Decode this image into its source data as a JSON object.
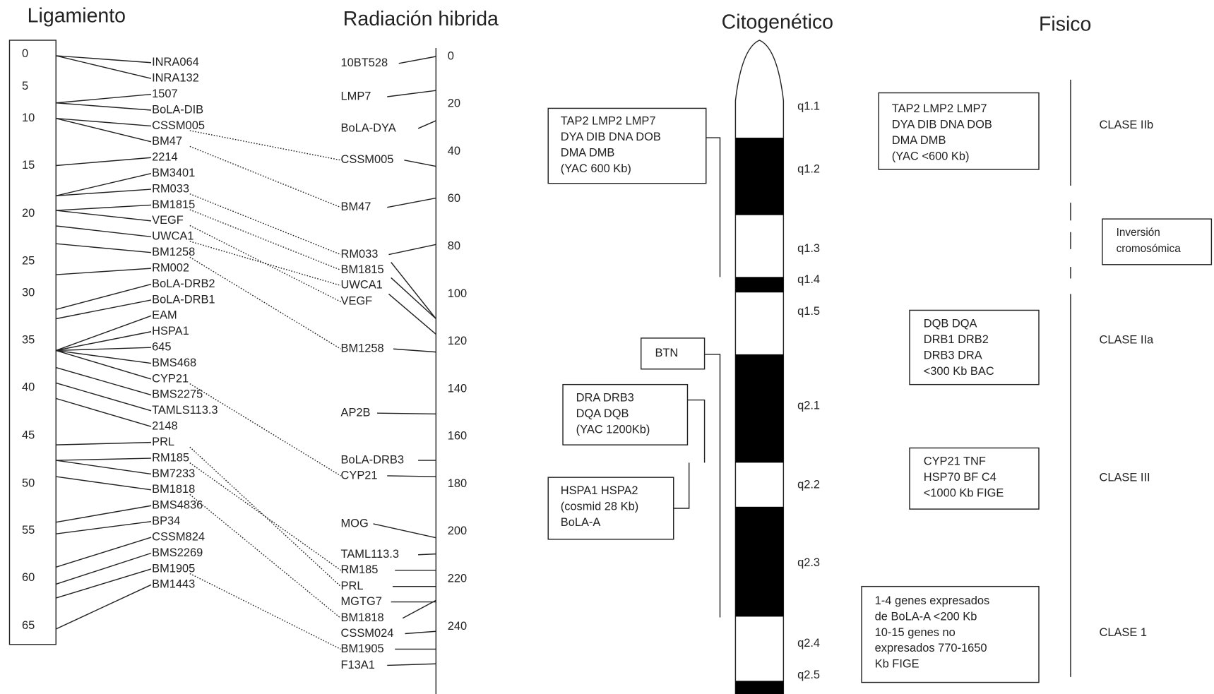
{
  "linkage": {
    "title": "Ligamiento",
    "scale": [
      0,
      5,
      10,
      15,
      20,
      25,
      30,
      35,
      40,
      45,
      50,
      55,
      60,
      65
    ],
    "markers": [
      "INRA064",
      "INRA132",
      "1507",
      "BoLA-DIB",
      "CSSM005",
      "BM47",
      "2214",
      "BM3401",
      "RM033",
      "BM1815",
      "VEGF",
      "UWCA1",
      "BM1258",
      "RM002",
      "BoLA-DRB2",
      "BoLA-DRB1",
      "EAM",
      "HSPA1",
      "645",
      "BMS468",
      "CYP21",
      "BMS2275",
      "TAMLS113.3",
      "2148",
      "PRL",
      "RM185",
      "BM7233",
      "BM1818",
      "BMS4836",
      "BP34",
      "CSSM824",
      "BMS2269",
      "BM1905",
      "BM1443"
    ]
  },
  "radiation_hybrid": {
    "title": "Radiación hibrida",
    "scale": [
      0,
      20,
      40,
      60,
      80,
      100,
      120,
      140,
      160,
      180,
      200,
      220,
      240
    ],
    "markers": [
      "10BT528",
      "LMP7",
      "BoLA-DYA",
      "CSSM005",
      "BM47",
      "RM033",
      "BM1815",
      "UWCA1",
      "VEGF",
      "BM1258",
      "AP2B",
      "BoLA-DRB3",
      "CYP21",
      "MOG",
      "TAML113.3",
      "RM185",
      "PRL",
      "MGTG7",
      "BM1818",
      "CSSM024",
      "BM1905",
      "F13A1"
    ]
  },
  "cytogenetic": {
    "title": "Citogenético",
    "bands": [
      "q1.1",
      "q1.2",
      "q1.3",
      "q1.4",
      "q1.5",
      "q2.1",
      "q2.2",
      "q2.3",
      "q2.4",
      "q2.5"
    ],
    "boxes": [
      [
        "TAP2 LMP2 LMP7",
        "DYA DIB DNA DOB",
        "DMA DMB",
        "(YAC 600 Kb)"
      ],
      [
        "BTN"
      ],
      [
        "DRA DRB3",
        "DQA DQB",
        "(YAC 1200Kb)"
      ],
      [
        "HSPA1 HSPA2",
        "(cosmid 28 Kb)",
        "BoLA-A"
      ]
    ]
  },
  "physical": {
    "title": "Fisico",
    "boxes": [
      [
        "TAP2 LMP2 LMP7",
        "DYA DIB DNA DOB",
        "DMA DMB",
        "(YAC <600 Kb)"
      ],
      [
        "DQB DQA",
        "DRB1 DRB2",
        "DRB3 DRA",
        "<300 Kb BAC"
      ],
      [
        "CYP21 TNF",
        "HSP70 BF C4",
        "<1000 Kb FIGE"
      ],
      [
        "1-4 genes expresados",
        "de BoLA-A <200 Kb",
        "10-15 genes no",
        "expresados 770-1650",
        "Kb FIGE"
      ]
    ],
    "classes": [
      "CLASE IIb",
      "CLASE IIa",
      "CLASE III",
      "CLASE 1"
    ],
    "inversion": [
      "Inversión",
      "cromosómica"
    ]
  }
}
